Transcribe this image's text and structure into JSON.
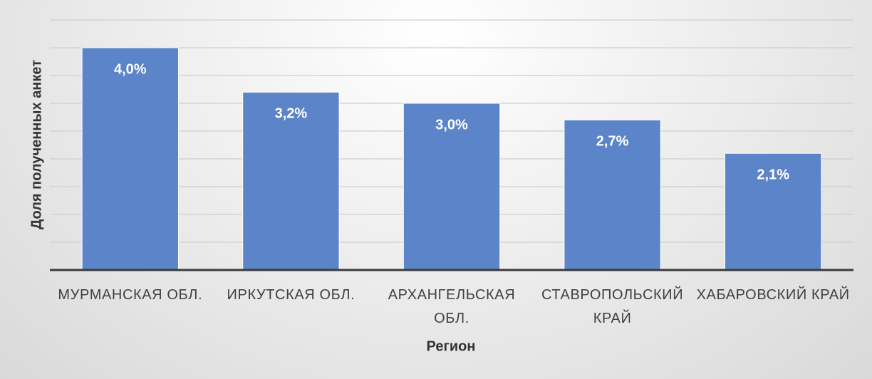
{
  "chart_data": {
    "type": "bar",
    "x_label": "Регион",
    "y_label": "Доля полученных анкет",
    "categories": [
      "МУРМАНСКАЯ ОБЛ.",
      "ИРКУТСКАЯ ОБЛ.",
      "АРХАНГЕЛЬСКАЯ ОБЛ.",
      "СТАВРОПОЛЬСКИЙ КРАЙ",
      "ХАБАРОВСКИЙ КРАЙ"
    ],
    "values": [
      4.0,
      3.2,
      3.0,
      2.7,
      2.1
    ],
    "value_labels": [
      "4,0%",
      "3,2%",
      "3,0%",
      "2,7%",
      "2,1%"
    ],
    "color": "#5b84c9",
    "ylim": [
      0,
      4.5
    ],
    "yticks": [
      0,
      0.5,
      1,
      1.5,
      2,
      2.5,
      3,
      3.5,
      4,
      4.5
    ],
    "grid": true
  }
}
